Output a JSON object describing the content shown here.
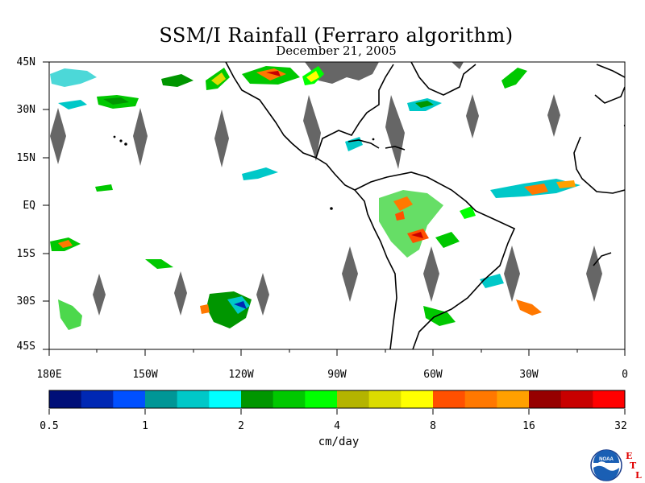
{
  "title": "SSM/I Rainfall (Ferraro algorithm)",
  "subtitle": "December 21, 2005",
  "latitude_labels": [
    "45N",
    "30N",
    "15N",
    "EQ",
    "15S",
    "30S",
    "45S"
  ],
  "longitude_labels": [
    "180E",
    "150W",
    "120W",
    "90W",
    "60W",
    "30W",
    "0"
  ],
  "colorbar": {
    "colors": [
      "#000f78",
      "#0028b4",
      "#0050ff",
      "#009696",
      "#00c8c8",
      "#00ffff",
      "#009600",
      "#00c800",
      "#00ff00",
      "#b4b400",
      "#dcdc00",
      "#ffff00",
      "#ff5000",
      "#ff7800",
      "#ffa000",
      "#960000",
      "#c80000",
      "#ff0000"
    ],
    "tick_labels": [
      "0.5",
      "1",
      "2",
      "4",
      "8",
      "16",
      "32"
    ],
    "units": "cm/day"
  },
  "no_data_color": "#666666",
  "logo": {
    "text": "NOAA",
    "side_letters": [
      "E",
      "T",
      "L"
    ]
  },
  "icons": [
    "noaa-logo-icon"
  ]
}
